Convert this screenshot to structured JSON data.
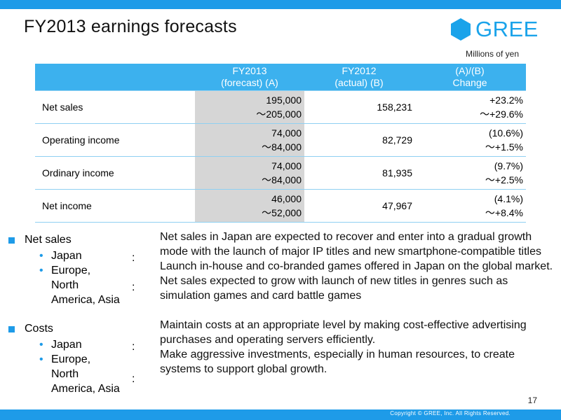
{
  "slide": {
    "title": "FY2013 earnings forecasts",
    "logo_text": "GREE",
    "units": "Millions of yen",
    "page_number": "17",
    "copyright": "Copyright © GREE, Inc. All Rights Reserved."
  },
  "table": {
    "headers": [
      {
        "line1": "",
        "line2": ""
      },
      {
        "line1": "FY2013",
        "line2": "(forecast) (A)"
      },
      {
        "line1": "FY2012",
        "line2": "(actual) (B)"
      },
      {
        "line1": "(A)/(B)",
        "line2": "Change"
      }
    ],
    "rows": [
      {
        "label": "Net sales",
        "forecast_low": "195,000",
        "forecast_high": "～205,000",
        "actual": "158,231",
        "change_low": "+23.2%",
        "change_high": "～+29.6%"
      },
      {
        "label": "Operating income",
        "forecast_low": "74,000",
        "forecast_high": "～84,000",
        "actual": "82,729",
        "change_low": "(10.6%)",
        "change_high": "～+1.5%"
      },
      {
        "label": "Ordinary income",
        "forecast_low": "74,000",
        "forecast_high": "～84,000",
        "actual": "81,935",
        "change_low": "(9.7%)",
        "change_high": "～+2.5%"
      },
      {
        "label": "Net income",
        "forecast_low": "46,000",
        "forecast_high": "～52,000",
        "actual": "47,967",
        "change_low": "(4.1%)",
        "change_high": "～+8.4%"
      }
    ]
  },
  "sections": [
    {
      "title": "Net sales",
      "items": [
        {
          "label": "Japan",
          "colon": ":"
        },
        {
          "label_lines": [
            "Europe,",
            "North",
            "America, Asia"
          ],
          "colon": ":"
        }
      ]
    },
    {
      "title": "Costs",
      "items": [
        {
          "label": "Japan",
          "colon": ":"
        },
        {
          "label_lines": [
            "Europe,",
            "North",
            "America, Asia"
          ],
          "colon": ":"
        }
      ]
    }
  ],
  "descriptions": [
    "Net sales in Japan are expected to recover and enter into a gradual growth mode with the launch of major IP titles and new smartphone-compatible titles",
    "Launch in-house and co-branded games offered in Japan on the global market. Net sales expected to grow with launch of new titles in genres such as simulation games and card battle games",
    "Maintain costs at an appropriate level by making cost-effective advertising purchases and operating servers efficiently.",
    "Make aggressive investments, especially in human resources, to create systems to support global growth."
  ],
  "colors": {
    "accent": "#1e9be8",
    "header_fill": "#3cb1ee",
    "forecast_fill": "#d6d6d6"
  }
}
